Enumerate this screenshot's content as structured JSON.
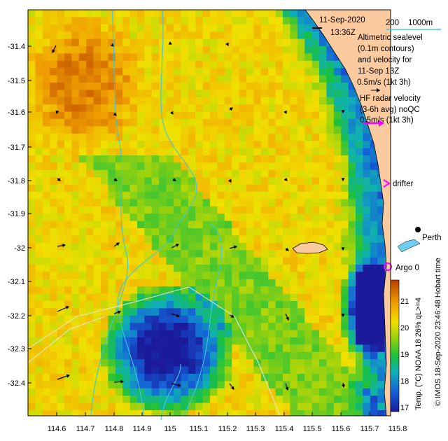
{
  "header": {
    "date": "11-Sep-2020",
    "time": "13:36Z",
    "depth_contours": [
      "200",
      "1000m"
    ]
  },
  "legend": {
    "altimetry": [
      "Altimetric sealevel",
      "(0.1m contours)",
      "and velocity for",
      "11-Sep 13Z",
      "0.5m/s (1kt 3h)"
    ],
    "radar": [
      "HF radar velocity",
      "(3-6h avg) noQC",
      "0.5m/s (1kt 3h)"
    ],
    "drifter": "drifter",
    "argo": "Argo 0"
  },
  "places": {
    "perth": "Perth"
  },
  "colorbar": {
    "title": "Temp. (°C) NOAA 18 26% qL>=4",
    "ticks": [
      "21",
      "20",
      "19",
      "18",
      "17"
    ],
    "min": 16.7,
    "max": 21.6
  },
  "credit": "© IMOS 18-Sep-2020 23:46:48 Hobart time",
  "axes": {
    "lat_ticks": [
      "-31.4",
      "-31.5",
      "-31.6",
      "-31.7",
      "-31.8",
      "-31.9",
      "-32",
      "-32.1",
      "-32.2",
      "-32.3",
      "-32.4"
    ],
    "lon_ticks": [
      "114.6",
      "114.7",
      "114.8",
      "114.9",
      "115",
      "115.1",
      "115.2",
      "115.3",
      "115.4",
      "115.5",
      "115.6",
      "115.7",
      "115.8"
    ]
  },
  "colors": {
    "land": "#fbcb9f",
    "radar_arrow": "#ff00ff",
    "sealevel_contour": "#40c8d8",
    "depth_contour": "#e8e8e8",
    "argo": "#ff00ff"
  }
}
